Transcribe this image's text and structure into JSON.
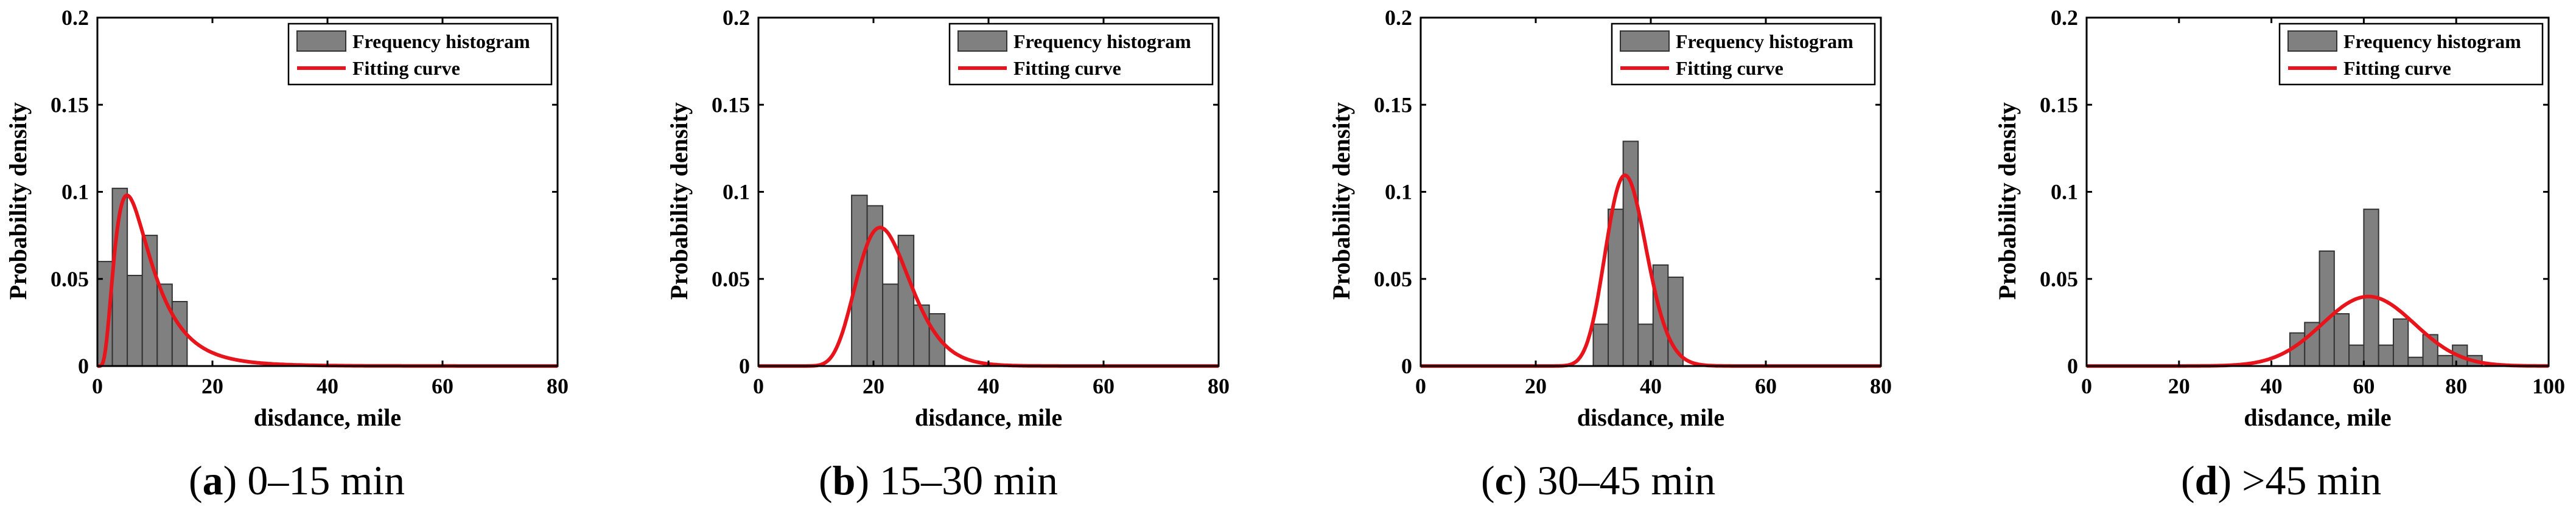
{
  "colors": {
    "bar": "#808080",
    "curve": "#e8141b",
    "axis": "#000000"
  },
  "legend": {
    "histogram": "Frequency histogram",
    "curve": "Fitting curve"
  },
  "chart_data": [
    {
      "type": "bar",
      "caption_letter": "a",
      "caption_text": "0–15 min",
      "xlabel": "disdance, mile",
      "ylabel": "Probability density",
      "xlim": [
        0,
        80
      ],
      "ylim": [
        0,
        0.2
      ],
      "xticks": [
        0,
        20,
        40,
        60,
        80
      ],
      "yticks": [
        0,
        0.05,
        0.1,
        0.15,
        0.2
      ],
      "ytick_labels": [
        "0",
        "0.05",
        "0.1",
        "0.15",
        "0.2"
      ],
      "bin_width": 2.6,
      "bins": [
        {
          "x": 0,
          "value": 0.06
        },
        {
          "x": 2.6,
          "value": 0.102
        },
        {
          "x": 5.2,
          "value": 0.052
        },
        {
          "x": 7.8,
          "value": 0.075
        },
        {
          "x": 10.4,
          "value": 0.047
        },
        {
          "x": 13.0,
          "value": 0.037
        }
      ],
      "fit": {
        "kind": "lognormal",
        "mu": 2.0,
        "sigma": 0.6,
        "scale": 0.91
      }
    },
    {
      "type": "bar",
      "caption_letter": "b",
      "caption_text": "15–30 min",
      "xlabel": "disdance, mile",
      "ylabel": "Probability density",
      "xlim": [
        0,
        80
      ],
      "ylim": [
        0,
        0.2
      ],
      "xticks": [
        0,
        20,
        40,
        60,
        80
      ],
      "yticks": [
        0,
        0.05,
        0.1,
        0.15,
        0.2
      ],
      "ytick_labels": [
        "0",
        "0.05",
        "0.1",
        "0.15",
        "0.2"
      ],
      "bin_width": 2.7,
      "bins": [
        {
          "x": 16.2,
          "value": 0.098
        },
        {
          "x": 18.9,
          "value": 0.092
        },
        {
          "x": 21.6,
          "value": 0.047
        },
        {
          "x": 24.3,
          "value": 0.075
        },
        {
          "x": 27.0,
          "value": 0.035
        },
        {
          "x": 29.7,
          "value": 0.03
        }
      ],
      "fit": {
        "kind": "lognormal",
        "mu": 3.1,
        "sigma": 0.22,
        "scale": 0.95
      }
    },
    {
      "type": "bar",
      "caption_letter": "c",
      "caption_text": "30–45 min",
      "xlabel": "disdance, mile",
      "ylabel": "Probability density",
      "xlim": [
        0,
        80
      ],
      "ylim": [
        0,
        0.2
      ],
      "xticks": [
        0,
        20,
        40,
        60,
        80
      ],
      "yticks": [
        0,
        0.05,
        0.1,
        0.15,
        0.2
      ],
      "ytick_labels": [
        "0",
        "0.05",
        "0.1",
        "0.15",
        "0.2"
      ],
      "bin_width": 2.6,
      "bins": [
        {
          "x": 30.0,
          "value": 0.024
        },
        {
          "x": 32.6,
          "value": 0.09
        },
        {
          "x": 35.2,
          "value": 0.129
        },
        {
          "x": 37.8,
          "value": 0.024
        },
        {
          "x": 40.4,
          "value": 0.058
        },
        {
          "x": 43.0,
          "value": 0.051
        }
      ],
      "fit": {
        "kind": "lognormal",
        "mu": 3.58,
        "sigma": 0.1,
        "scale": 0.98
      }
    },
    {
      "type": "bar",
      "caption_letter": "d",
      "caption_text": ">45 min",
      "xlabel": "disdance, mile",
      "ylabel": "Probability density",
      "xlim": [
        0,
        100
      ],
      "ylim": [
        0,
        0.2
      ],
      "xticks": [
        0,
        20,
        40,
        60,
        80,
        100
      ],
      "yticks": [
        0,
        0.05,
        0.1,
        0.15,
        0.2
      ],
      "ytick_labels": [
        "0",
        "0.05",
        "0.1",
        "0.15",
        "0.2"
      ],
      "bin_width": 3.2,
      "bins": [
        {
          "x": 44.0,
          "value": 0.019
        },
        {
          "x": 47.2,
          "value": 0.025
        },
        {
          "x": 50.4,
          "value": 0.066
        },
        {
          "x": 53.6,
          "value": 0.03
        },
        {
          "x": 56.8,
          "value": 0.012
        },
        {
          "x": 60.0,
          "value": 0.09
        },
        {
          "x": 63.2,
          "value": 0.012
        },
        {
          "x": 66.4,
          "value": 0.027
        },
        {
          "x": 69.6,
          "value": 0.005
        },
        {
          "x": 72.8,
          "value": 0.018
        },
        {
          "x": 76.0,
          "value": 0.006
        },
        {
          "x": 79.2,
          "value": 0.012
        },
        {
          "x": 82.4,
          "value": 0.006
        }
      ],
      "fit": {
        "kind": "normal",
        "mean": 61,
        "sd": 10,
        "scale": 1.0
      }
    }
  ]
}
